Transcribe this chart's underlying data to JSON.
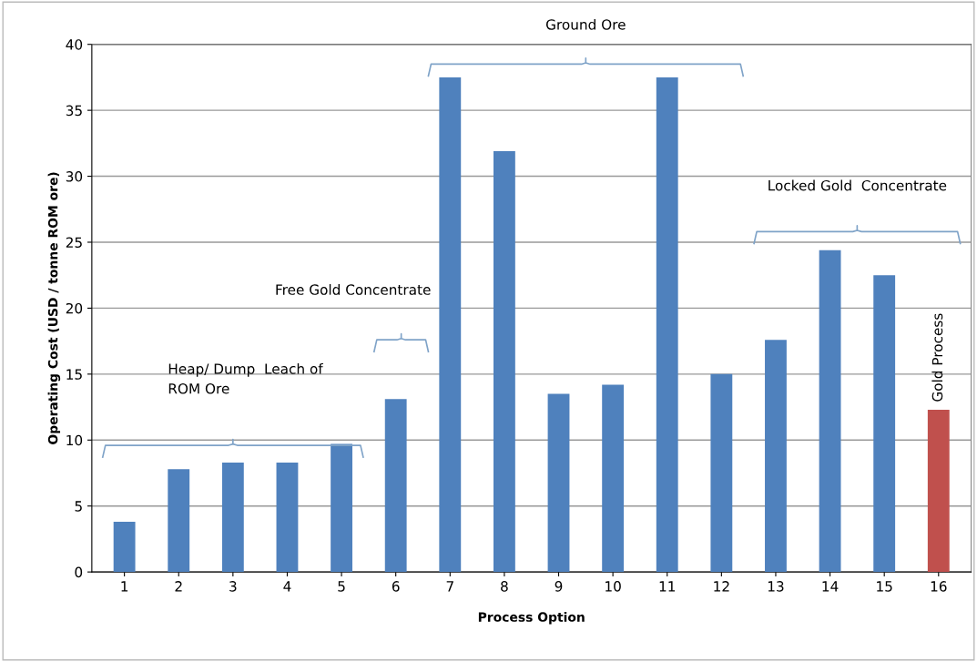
{
  "chart_data": {
    "type": "bar",
    "xlabel": "Process Option",
    "ylabel": "Operating Cost (USD / tonne ROM ore)",
    "categories": [
      "1",
      "2",
      "3",
      "4",
      "5",
      "6",
      "7",
      "8",
      "9",
      "10",
      "11",
      "12",
      "13",
      "14",
      "15",
      "16"
    ],
    "values": [
      3.8,
      7.8,
      8.3,
      8.3,
      9.7,
      13.1,
      37.5,
      31.9,
      13.5,
      14.2,
      37.5,
      15.0,
      17.6,
      24.4,
      22.5,
      12.3
    ],
    "colors": [
      "#4f81bd",
      "#4f81bd",
      "#4f81bd",
      "#4f81bd",
      "#4f81bd",
      "#4f81bd",
      "#4f81bd",
      "#4f81bd",
      "#4f81bd",
      "#4f81bd",
      "#4f81bd",
      "#4f81bd",
      "#4f81bd",
      "#4f81bd",
      "#4f81bd",
      "#c0504d"
    ],
    "ylim": [
      0,
      40
    ],
    "yticks": [
      0,
      5,
      10,
      15,
      20,
      25,
      30,
      35,
      40
    ],
    "grid": "y",
    "annotations": [
      "Heap/ Dump  Leach of\nROM Ore",
      "Free Gold Concentrate",
      "Ground Ore",
      "Locked Gold  Concentrate",
      {
        "text": "Gold Process",
        "x": "16",
        "y": 12.3
      }
    ]
  }
}
